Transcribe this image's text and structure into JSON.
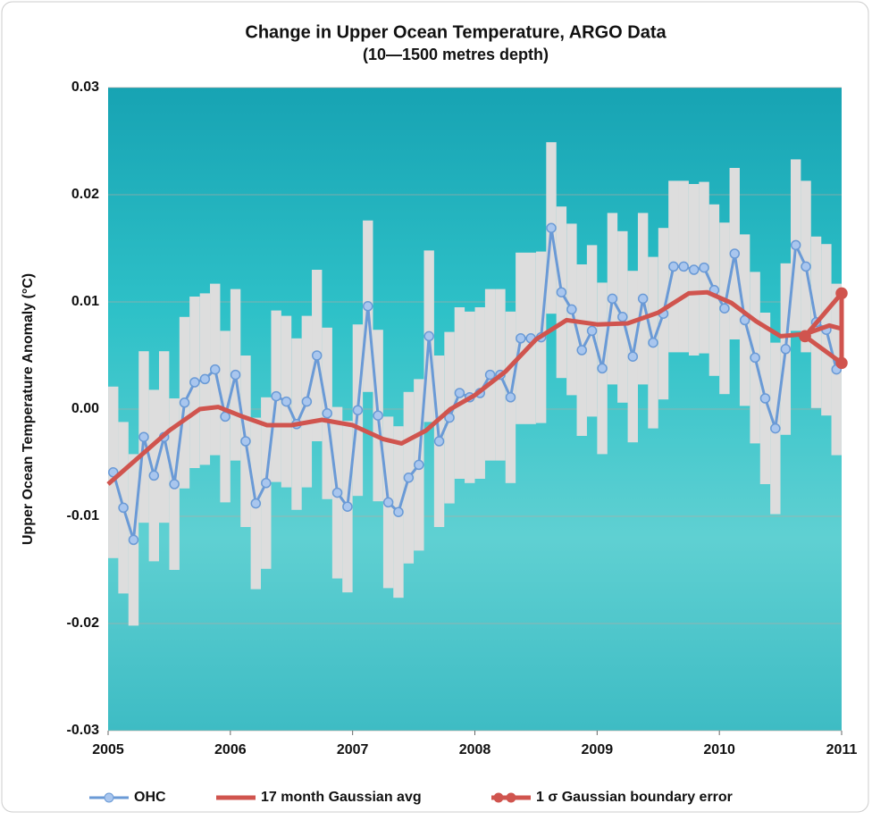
{
  "chart_data": {
    "type": "line",
    "title": "Change in Upper Ocean Temperature, ARGO Data",
    "subtitle": "(10—1500 metres depth)",
    "y_label": "Upper Ocean Temperature Anomaly (°C)",
    "xlim": [
      2005,
      2011
    ],
    "xticks": [
      2005,
      2006,
      2007,
      2008,
      2009,
      2010,
      2011
    ],
    "ylim": [
      -0.03,
      0.03
    ],
    "yticks": [
      0.03,
      0.02,
      0.01,
      {
        "value": 0,
        "label": "0.00"
      },
      -0.01,
      -0.02,
      -0.03
    ],
    "grid": true,
    "series": [
      {
        "name": "OHC",
        "color": "#6a9ad6",
        "error": 0.008,
        "error_color": "#dddddd",
        "x": [
          2005.042,
          2005.125,
          2005.208,
          2005.292,
          2005.375,
          2005.458,
          2005.542,
          2005.625,
          2005.708,
          2005.792,
          2005.875,
          2005.958,
          2006.042,
          2006.125,
          2006.208,
          2006.292,
          2006.375,
          2006.458,
          2006.542,
          2006.625,
          2006.708,
          2006.792,
          2006.875,
          2006.958,
          2007.042,
          2007.125,
          2007.208,
          2007.292,
          2007.375,
          2007.458,
          2007.542,
          2007.625,
          2007.708,
          2007.792,
          2007.875,
          2007.958,
          2008.042,
          2008.125,
          2008.208,
          2008.292,
          2008.375,
          2008.458,
          2008.542,
          2008.625,
          2008.708,
          2008.792,
          2008.875,
          2008.958,
          2009.042,
          2009.125,
          2009.208,
          2009.292,
          2009.375,
          2009.458,
          2009.542,
          2009.625,
          2009.708,
          2009.792,
          2009.875,
          2009.958,
          2010.042,
          2010.125,
          2010.208,
          2010.292,
          2010.375,
          2010.458,
          2010.542,
          2010.625,
          2010.708,
          2010.792,
          2010.875,
          2010.958
        ],
        "values": [
          -0.0059,
          -0.0092,
          -0.0122,
          -0.0026,
          -0.0062,
          -0.0026,
          -0.007,
          0.0006,
          0.0025,
          0.0028,
          0.0037,
          -0.0007,
          0.0032,
          -0.003,
          -0.0088,
          -0.0069,
          0.0012,
          0.0007,
          -0.0014,
          0.0007,
          0.005,
          -0.0004,
          -0.0078,
          -0.0091,
          -0.0001,
          0.0096,
          -0.0006,
          -0.0087,
          -0.0096,
          -0.0064,
          -0.0052,
          0.0068,
          -0.003,
          -0.0008,
          0.0015,
          0.0011,
          0.0015,
          0.0032,
          0.0032,
          0.0011,
          0.0066,
          0.0066,
          0.0067,
          0.0169,
          0.0109,
          0.0093,
          0.0055,
          0.0073,
          0.0038,
          0.0103,
          0.0086,
          0.0049,
          0.0103,
          0.0062,
          0.0089,
          0.0133,
          0.0133,
          0.013,
          0.0132,
          0.0111,
          0.0094,
          0.0145,
          0.0083,
          0.0048,
          0.001,
          -0.0018,
          0.0056,
          0.0153,
          0.0133,
          0.0081,
          0.0074,
          0.0037
        ]
      },
      {
        "name": "17 month Gaussian avg",
        "color": "#d0544e",
        "x": [
          2005.0,
          2005.25,
          2005.5,
          2005.75,
          2005.9,
          2006.1,
          2006.3,
          2006.5,
          2006.75,
          2007.0,
          2007.25,
          2007.4,
          2007.6,
          2007.8,
          2008.0,
          2008.25,
          2008.5,
          2008.75,
          2009.0,
          2009.25,
          2009.5,
          2009.75,
          2009.9,
          2010.1,
          2010.3,
          2010.5,
          2010.7,
          2010.9,
          2011.0
        ],
        "values": [
          -0.007,
          -0.0045,
          -0.002,
          0.0,
          0.0002,
          -0.0007,
          -0.0015,
          -0.0015,
          -0.001,
          -0.0015,
          -0.0028,
          -0.0032,
          -0.002,
          0.0,
          0.0013,
          0.0035,
          0.0065,
          0.0083,
          0.0079,
          0.008,
          0.009,
          0.0108,
          0.0109,
          0.0099,
          0.0082,
          0.0068,
          0.007,
          0.0078,
          0.0075
        ]
      },
      {
        "name": "1 σ Gaussian boundary error",
        "color": "#d0544e",
        "markers": true,
        "x": [
          2010.7,
          2011.0,
          2011.0,
          2010.7
        ],
        "values": [
          0.0068,
          0.0108,
          0.0043,
          0.0068
        ]
      }
    ]
  }
}
